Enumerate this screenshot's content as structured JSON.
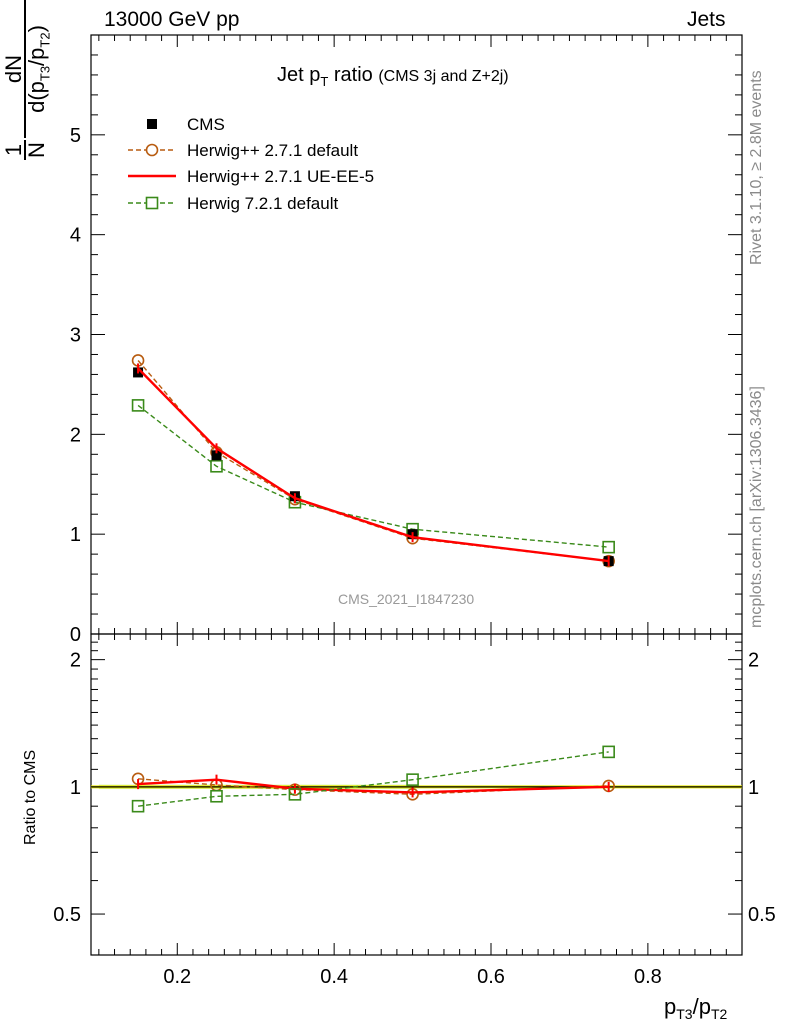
{
  "header": {
    "left": "13000 GeV pp",
    "right": "Jets"
  },
  "side": {
    "rivet": "Rivet 3.1.10, ≥ 2.8M events",
    "site": "mcplots.cern.ch [arXiv:1306.3436]"
  },
  "chart_data": [
    {
      "type": "line",
      "panel": "main",
      "title_main": "Jet p",
      "title_sub": "T",
      "title_word": "ratio",
      "title_note": "(CMS 3j and Z+2j)",
      "analysis_label": "CMS_2021_I1847230",
      "ylabel": {
        "frac_one": "1",
        "frac_N": "N",
        "dN": "dN",
        "d": "d(p",
        "s1": "T3",
        "mid": "/p",
        "s2": "T2",
        "end": ")"
      },
      "xlim": [
        0.09,
        0.92
      ],
      "ylim": [
        0,
        6
      ],
      "yticks": [
        0,
        1,
        2,
        3,
        4,
        5
      ],
      "ytick_labels": [
        "0",
        "1",
        "2",
        "3",
        "4",
        "5"
      ],
      "x": [
        0.15,
        0.25,
        0.35,
        0.5,
        0.75
      ],
      "series": [
        {
          "name": "CMS",
          "style": "data",
          "color": "#000000",
          "values": [
            2.62,
            1.79,
            1.38,
            1.0,
            0.73
          ]
        },
        {
          "name": "Herwig++ 2.7.1 default",
          "style": "circle-dashed",
          "color": "#b85c10",
          "values": [
            2.74,
            1.82,
            1.35,
            0.96,
            0.73
          ]
        },
        {
          "name": "Herwig++ 2.7.1 UE-EE-5",
          "style": "solid",
          "color": "#ff0000",
          "values": [
            2.66,
            1.86,
            1.36,
            0.97,
            0.73
          ]
        },
        {
          "name": "Herwig 7.2.1 default",
          "style": "square-dashed",
          "color": "#3a8a1a",
          "values": [
            2.29,
            1.68,
            1.32,
            1.05,
            0.87
          ]
        }
      ],
      "grid": false
    },
    {
      "type": "line",
      "panel": "ratio",
      "ylabel": "Ratio to CMS",
      "xlabel": {
        "p": "p",
        "s1": "T3",
        "mid": "/p",
        "s2": "T2"
      },
      "xlim": [
        0.09,
        0.92
      ],
      "ylim": [
        0.4,
        2.3
      ],
      "log_y": true,
      "xticks": [
        0.2,
        0.4,
        0.6,
        0.8
      ],
      "xtick_labels": [
        "0.2",
        "0.4",
        "0.6",
        "0.8"
      ],
      "yticks": [
        0.5,
        1,
        2
      ],
      "ytick_labels": [
        "0.5",
        "1",
        "2"
      ],
      "x": [
        0.15,
        0.25,
        0.35,
        0.5,
        0.75
      ],
      "series": [
        {
          "ref": "Herwig++ 2.7.1 default",
          "style": "circle-dashed",
          "color": "#b85c10",
          "values": [
            1.045,
            1.01,
            0.985,
            0.96,
            1.005
          ]
        },
        {
          "ref": "Herwig++ 2.7.1 UE-EE-5",
          "style": "solid",
          "color": "#ff0000",
          "values": [
            1.015,
            1.04,
            0.99,
            0.97,
            1.0
          ]
        },
        {
          "ref": "Herwig 7.2.1 default",
          "style": "square-dashed",
          "color": "#3a8a1a",
          "values": [
            0.9,
            0.95,
            0.96,
            1.04,
            1.21
          ]
        }
      ],
      "grid": false
    }
  ]
}
